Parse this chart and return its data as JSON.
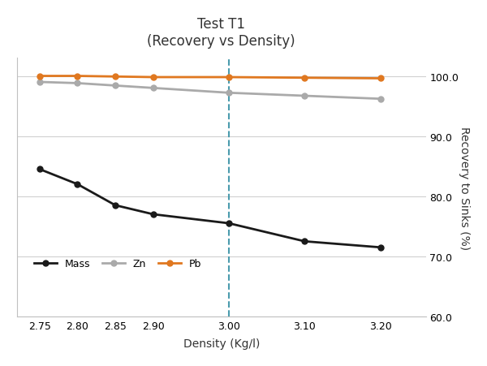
{
  "title_line1": "Test T1",
  "title_line2": "(Recovery vs Density)",
  "xlabel": "Density (Kg/l)",
  "ylabel": "Recovery to Sinks (%)",
  "x": [
    2.75,
    2.8,
    2.85,
    2.9,
    3.0,
    3.1,
    3.2
  ],
  "mass": [
    84.5,
    82.0,
    78.5,
    77.0,
    75.5,
    72.5,
    71.5
  ],
  "zn": [
    99.0,
    98.8,
    98.4,
    98.0,
    97.2,
    96.7,
    96.2
  ],
  "pb": [
    100.0,
    100.0,
    99.9,
    99.8,
    99.8,
    99.7,
    99.6
  ],
  "mass_color": "#1a1a1a",
  "zn_color": "#aaaaaa",
  "pb_color": "#E07820",
  "vline_x": 3.0,
  "vline_color": "#4A9BAD",
  "ylim": [
    60.0,
    103.0
  ],
  "yticks": [
    60.0,
    70.0,
    80.0,
    90.0,
    100.0
  ],
  "xlim": [
    2.72,
    3.26
  ],
  "xticks": [
    2.75,
    2.8,
    2.85,
    2.9,
    3.0,
    3.1,
    3.2
  ],
  "background_color": "#ffffff",
  "grid_color": "#d0d0d0",
  "legend_labels": [
    "Mass",
    "Zn",
    "Pb"
  ],
  "marker_size": 5,
  "line_width": 2.0,
  "border_color": "#c0c0c0"
}
